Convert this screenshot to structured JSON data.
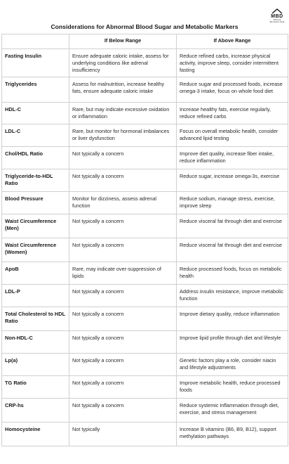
{
  "logo": {
    "text": "MBD",
    "subtext": "Minimal Biomarker Data"
  },
  "title": "Considerations for Abnormal Blood Sugar and Metabolic Markers",
  "headers": [
    "",
    "If Below Range",
    "If Above Range"
  ],
  "rows": [
    {
      "marker": "Fasting Insulin",
      "below": "Ensure adequate caloric intake, assess for underlying conditions like adrenal insufficiency",
      "above": "Reduce refined carbs, increase physical activity, improve sleep, consider intermittent fasting"
    },
    {
      "marker": "Triglycerides",
      "below": "Assess for malnutrition, increase healthy fats, ensure adequate caloric intake",
      "above": "Reduce sugar and processed foods, increase omega-3 intake, focus on whole food diet"
    },
    {
      "marker": "HDL-C",
      "below": "Rare, but may indicate excessive oxidation or inflammation",
      "above": "Increase healthy fats, exercise regularly, reduce refined carbs"
    },
    {
      "marker": "LDL-C",
      "below": "Rare, but monitor for hormonal imbalances or liver dysfunction",
      "above": "Focus on overall metabolic health, consider advanced lipid testing"
    },
    {
      "marker": "Chol/HDL Ratio",
      "below": "Not typically a concern",
      "above": "Improve diet quality, increase fiber intake, reduce inflammation"
    },
    {
      "marker": "Triglyceride-to-HDL Ratio",
      "below": "Not typically a concern",
      "above": "Reduce sugar, increase omega-3s, exercise"
    },
    {
      "marker": "Blood Pressure",
      "below": "Monitor for dizziness, assess adrenal function",
      "above": "Reduce sodium, manage stress, exercise, improve sleep"
    },
    {
      "marker": "Waist Circumference (Men)",
      "below": "Not typically a concern",
      "above": "Reduce visceral fat through diet and exercise"
    },
    {
      "marker": "Waist Circumference (Women)",
      "below": "Not typically a concern",
      "above": "Reduce visceral fat through diet and exercise"
    },
    {
      "marker": "ApoB",
      "below": "Rare, may indicate over-suppression of lipids",
      "above": "Reduce processed foods, focus on metabolic health"
    },
    {
      "marker": "LDL-P",
      "below": "Not typically a concern",
      "above": "Address insulin resistance, improve metabolic function"
    },
    {
      "marker": "Total Cholesterol to HDL Ratio",
      "below": "Not typically a concern",
      "above": "Improve dietary quality, reduce inflammation"
    },
    {
      "marker": "Non-HDL-C",
      "below": "Not typically a concern",
      "above": "Improve lipid profile through diet and lifestyle"
    },
    {
      "marker": "Lp(a)",
      "below": "Not typically a concern",
      "above": "Genetic factors play a role, consider niacin and lifestyle adjustments"
    },
    {
      "marker": "TG Ratio",
      "below": "Not typically a concern",
      "above": "Improve metabolic health, reduce processed foods"
    },
    {
      "marker": "CRP-hs",
      "below": "Not typically a concern",
      "above": "Reduce systemic inflammation through diet, exercise, and stress management"
    },
    {
      "marker": "Homocysteine",
      "below": "Not typically",
      "above": "Increase B vitamins (B6, B9, B12), support methylation pathways"
    }
  ]
}
